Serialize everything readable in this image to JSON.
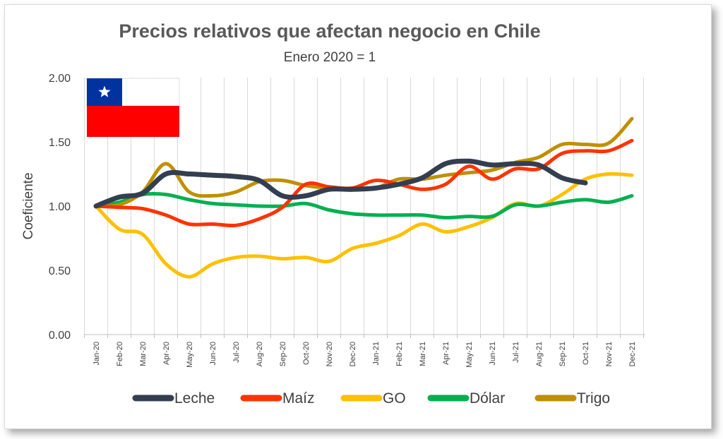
{
  "chart_data": {
    "type": "line",
    "title": "Precios relativos que afectan negocio en Chile",
    "subtitle": "Enero 2020 = 1",
    "xlabel": "",
    "ylabel": "Coeficiente",
    "ylim": [
      0,
      2
    ],
    "yticks": [
      "0.00",
      "0.50",
      "1.00",
      "1.50",
      "2.00"
    ],
    "grid": "vertical",
    "legend": "bottom",
    "categories": [
      "Jan-20",
      "Feb-20",
      "Mar-20",
      "Apr-20",
      "May-20",
      "Jun-20",
      "Jul-20",
      "Aug-20",
      "Sep-20",
      "Oct-20",
      "Nov-20",
      "Dec-20",
      "Jan-21",
      "Feb-21",
      "Mar-21",
      "Apr-21",
      "May-21",
      "Jun-21",
      "Jul-21",
      "Aug-21",
      "Sep-21",
      "Oct-21",
      "Nov-21",
      "Dec-21"
    ],
    "series": [
      {
        "name": "Leche",
        "color": "#333f50",
        "values": [
          1.0,
          1.07,
          1.1,
          1.25,
          1.25,
          1.24,
          1.23,
          1.2,
          1.08,
          1.08,
          1.13,
          1.13,
          1.14,
          1.17,
          1.22,
          1.33,
          1.35,
          1.32,
          1.33,
          1.32,
          1.22,
          1.18,
          null,
          null
        ]
      },
      {
        "name": "Maíz",
        "color": "#ff3300",
        "values": [
          1.0,
          0.99,
          0.98,
          0.93,
          0.86,
          0.86,
          0.85,
          0.9,
          0.99,
          1.17,
          1.15,
          1.14,
          1.2,
          1.17,
          1.13,
          1.17,
          1.31,
          1.21,
          1.29,
          1.29,
          1.41,
          1.43,
          1.43,
          1.51
        ]
      },
      {
        "name": "GO",
        "color": "#ffc000",
        "values": [
          1.0,
          0.82,
          0.78,
          0.55,
          0.45,
          0.55,
          0.6,
          0.61,
          0.59,
          0.6,
          0.57,
          0.67,
          0.71,
          0.77,
          0.86,
          0.8,
          0.84,
          0.91,
          1.02,
          1.0,
          1.09,
          1.21,
          1.25,
          1.24
        ]
      },
      {
        "name": "Dólar",
        "color": "#00b050",
        "values": [
          1.0,
          1.03,
          1.09,
          1.09,
          1.05,
          1.02,
          1.01,
          1.0,
          1.0,
          1.02,
          0.97,
          0.94,
          0.93,
          0.93,
          0.93,
          0.91,
          0.92,
          0.92,
          1.01,
          1.0,
          1.03,
          1.05,
          1.03,
          1.08
        ]
      },
      {
        "name": "Trigo",
        "color": "#bf9000",
        "values": [
          1.0,
          1.01,
          1.11,
          1.33,
          1.11,
          1.08,
          1.11,
          1.19,
          1.2,
          1.16,
          1.14,
          1.13,
          1.14,
          1.21,
          1.21,
          1.24,
          1.26,
          1.28,
          1.34,
          1.38,
          1.48,
          1.48,
          1.49,
          1.68
        ]
      }
    ]
  },
  "flag": {
    "name": "Chile flag",
    "white": "#ffffff",
    "blue": "#0033a0",
    "red": "#ff0000"
  }
}
